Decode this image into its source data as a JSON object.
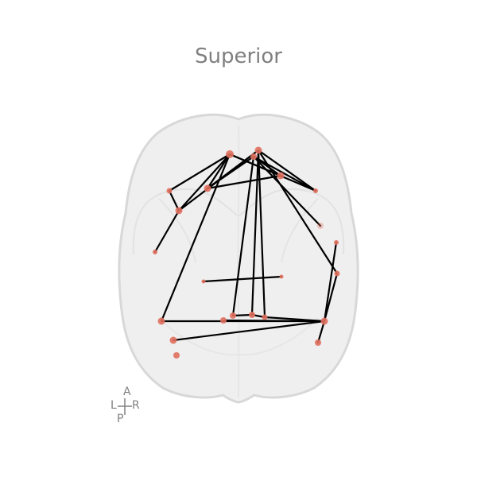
{
  "view": {
    "title": "Superior"
  },
  "orientation": {
    "anterior": "A",
    "posterior": "P",
    "left": "L",
    "right": "R"
  },
  "colors": {
    "node": "#e06f5e",
    "edge": "#000000",
    "brain_fill": "#efefef",
    "brain_stroke": "#d8d8d8"
  },
  "nodes": [
    {
      "id": "n1"
    },
    {
      "id": "n2"
    },
    {
      "id": "n3"
    },
    {
      "id": "n4"
    },
    {
      "id": "n5"
    },
    {
      "id": "n6"
    },
    {
      "id": "n7"
    },
    {
      "id": "n8"
    },
    {
      "id": "n9"
    },
    {
      "id": "n10"
    },
    {
      "id": "n11"
    },
    {
      "id": "n12"
    },
    {
      "id": "n13"
    },
    {
      "id": "n14"
    },
    {
      "id": "n15"
    },
    {
      "id": "n16"
    },
    {
      "id": "n17"
    },
    {
      "id": "n18"
    },
    {
      "id": "n19"
    },
    {
      "id": "n20"
    },
    {
      "id": "n21"
    },
    {
      "id": "n22"
    },
    {
      "id": "n23"
    },
    {
      "id": "n24"
    }
  ],
  "edges": [
    [
      "n1",
      "n6"
    ],
    [
      "n1",
      "n5"
    ],
    [
      "n1",
      "n4"
    ],
    [
      "n1",
      "n7"
    ],
    [
      "n1",
      "n8"
    ],
    [
      "n1",
      "n15"
    ],
    [
      "n2",
      "n6"
    ],
    [
      "n2",
      "n5"
    ],
    [
      "n2",
      "n8"
    ],
    [
      "n2",
      "n18"
    ],
    [
      "n2",
      "n17"
    ],
    [
      "n2",
      "n13"
    ],
    [
      "n3",
      "n10"
    ],
    [
      "n3",
      "n5"
    ],
    [
      "n3",
      "n16"
    ],
    [
      "n3",
      "n8"
    ],
    [
      "n3",
      "n7"
    ],
    [
      "n4",
      "n6"
    ],
    [
      "n6",
      "n9"
    ],
    [
      "n5",
      "n7"
    ],
    [
      "n12",
      "n14"
    ],
    [
      "n13",
      "n19"
    ],
    [
      "n15",
      "n19"
    ],
    [
      "n16",
      "n17"
    ],
    [
      "n17",
      "n18"
    ],
    [
      "n18",
      "n19"
    ],
    [
      "n19",
      "n11"
    ],
    [
      "n19",
      "n22"
    ],
    [
      "n21",
      "n19"
    ]
  ]
}
